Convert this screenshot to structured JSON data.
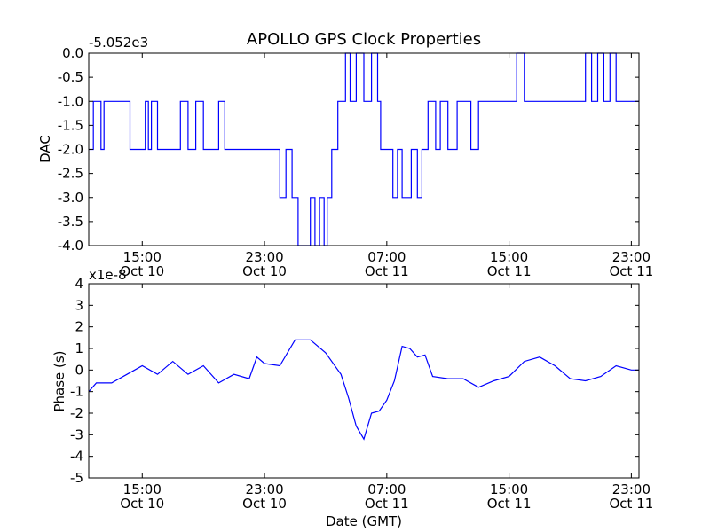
{
  "chart_data": [
    {
      "type": "line",
      "title": "APOLLO GPS Clock Properties",
      "xlabel": "",
      "ylabel": "DAC",
      "offset_label": "-5.052e3",
      "yticks": [
        "0.0",
        "-0.5",
        "-1.0",
        "-1.5",
        "-2.0",
        "-2.5",
        "-3.0",
        "-3.5",
        "-4.0"
      ],
      "ylim": [
        -4.0,
        0.0
      ],
      "xlim_hours": [
        11.5,
        47.5
      ],
      "xticks": [
        {
          "time": "15:00",
          "date": "Oct 10"
        },
        {
          "time": "23:00",
          "date": "Oct 10"
        },
        {
          "time": "07:00",
          "date": "Oct 11"
        },
        {
          "time": "15:00",
          "date": "Oct 11"
        },
        {
          "time": "23:00",
          "date": "Oct 11"
        }
      ],
      "xtick_hours": [
        15,
        23,
        31,
        39,
        47
      ],
      "color": "#0000ff",
      "grid": false,
      "series": [
        {
          "x": [
            11.5,
            11.8,
            12.3,
            12.5,
            14.0,
            14.2,
            15.2,
            15.4,
            15.6,
            16.0,
            17.5,
            18.0,
            18.5,
            19.0,
            20.0,
            20.4,
            20.8,
            23.0,
            24.0,
            24.4,
            24.8,
            25.2,
            26.0,
            26.3,
            26.6,
            26.9,
            27.1,
            27.4,
            27.8,
            28.3,
            28.6,
            29.0,
            29.5,
            30.0,
            30.4,
            30.6,
            31.4,
            31.7,
            32.0,
            32.6,
            33.0,
            33.3,
            33.7,
            34.2,
            34.5,
            35.0,
            35.6,
            36.0,
            36.5,
            37.0,
            38.5,
            39.0,
            39.5,
            40.0,
            41.0,
            42.5,
            44.0,
            44.4,
            44.8,
            45.2,
            45.6,
            46.0,
            46.5,
            47.5
          ],
          "y": [
            -2.0,
            -1.0,
            -2.0,
            -1.0,
            -1.0,
            -2.0,
            -1.0,
            -2.0,
            -1.0,
            -2.0,
            -1.0,
            -2.0,
            -1.0,
            -2.0,
            -1.0,
            -2.0,
            -2.0,
            -2.0,
            -3.0,
            -2.0,
            -3.0,
            -4.0,
            -3.0,
            -4.0,
            -3.0,
            -4.0,
            -3.0,
            -2.0,
            -1.0,
            0.0,
            -1.0,
            0.0,
            -1.0,
            0.0,
            -1.0,
            -2.0,
            -3.0,
            -2.0,
            -3.0,
            -2.0,
            -3.0,
            -2.0,
            -1.0,
            -2.0,
            -1.0,
            -2.0,
            -1.0,
            -1.0,
            -2.0,
            -1.0,
            -1.0,
            -1.0,
            -0.0,
            -1.0,
            -1.0,
            -1.0,
            -0.0,
            -1.0,
            -0.0,
            -1.0,
            -0.0,
            -1.0,
            -1.0,
            -1.0
          ]
        }
      ]
    },
    {
      "type": "line",
      "title": "",
      "xlabel": "Date (GMT)",
      "ylabel": "Phase (s)",
      "offset_label": "x1e-8",
      "yticks": [
        "4",
        "3",
        "2",
        "1",
        "0",
        "-1",
        "-2",
        "-3",
        "-4",
        "-5"
      ],
      "ylim": [
        -5,
        4
      ],
      "xlim_hours": [
        11.5,
        47.5
      ],
      "xticks": [
        {
          "time": "15:00",
          "date": "Oct 10"
        },
        {
          "time": "23:00",
          "date": "Oct 10"
        },
        {
          "time": "07:00",
          "date": "Oct 11"
        },
        {
          "time": "15:00",
          "date": "Oct 11"
        },
        {
          "time": "23:00",
          "date": "Oct 11"
        }
      ],
      "xtick_hours": [
        15,
        23,
        31,
        39,
        47
      ],
      "color": "#0000ff",
      "grid": false,
      "series": [
        {
          "x": [
            11.5,
            12.0,
            13.0,
            14.0,
            15.0,
            16.0,
            17.0,
            18.0,
            19.0,
            20.0,
            21.0,
            22.0,
            22.5,
            23.0,
            24.0,
            25.0,
            26.0,
            27.0,
            28.0,
            28.5,
            29.0,
            29.5,
            30.0,
            30.5,
            31.0,
            31.5,
            32.0,
            32.5,
            33.0,
            33.5,
            34.0,
            35.0,
            36.0,
            37.0,
            38.0,
            39.0,
            40.0,
            41.0,
            42.0,
            43.0,
            44.0,
            45.0,
            46.0,
            47.0,
            47.5
          ],
          "y": [
            -1.0,
            -0.6,
            -0.6,
            -0.2,
            0.2,
            -0.2,
            0.4,
            -0.2,
            0.2,
            -0.6,
            -0.2,
            -0.4,
            0.6,
            0.3,
            0.2,
            1.4,
            1.4,
            0.8,
            -0.2,
            -1.3,
            -2.6,
            -3.2,
            -2.0,
            -1.9,
            -1.4,
            -0.5,
            1.1,
            1.0,
            0.6,
            0.7,
            -0.3,
            -0.4,
            -0.4,
            -0.8,
            -0.5,
            -0.3,
            0.4,
            0.6,
            0.2,
            -0.4,
            -0.5,
            -0.3,
            0.2,
            0.0,
            0.0
          ]
        }
      ]
    }
  ]
}
